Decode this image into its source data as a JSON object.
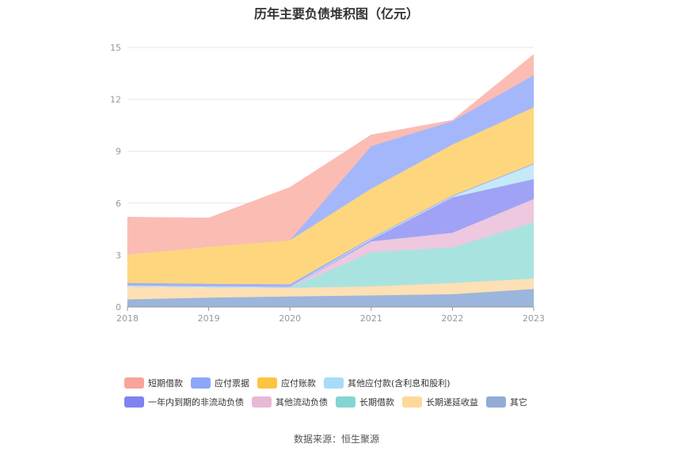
{
  "chart_data": {
    "type": "area",
    "title": "历年主要负债堆积图（亿元）",
    "x": [
      "2018",
      "2019",
      "2020",
      "2021",
      "2022",
      "2023"
    ],
    "ylim": [
      0,
      15
    ],
    "yticks": [
      "0",
      "3",
      "6",
      "9",
      "12",
      "15"
    ],
    "grid": true,
    "legend_position": "bottom",
    "series": [
      {
        "name": "其它",
        "color": "#9bb5dc",
        "values": [
          0.45,
          0.55,
          0.62,
          0.68,
          0.75,
          1.05
        ]
      },
      {
        "name": "长期递延收益",
        "color": "#fde0b4",
        "values": [
          0.75,
          0.6,
          0.5,
          0.52,
          0.65,
          0.6
        ]
      },
      {
        "name": "长期借款",
        "color": "#a9e3e0",
        "values": [
          0,
          0,
          0,
          1.97,
          2.05,
          3.25
        ]
      },
      {
        "name": "其他流动负债",
        "color": "#edc8df",
        "values": [
          0,
          0,
          0,
          0.63,
          0.85,
          1.35
        ]
      },
      {
        "name": "一年内到期的非流动负债",
        "color": "#a0a3f5",
        "values": [
          0,
          0,
          0,
          0.1,
          2.05,
          1.15
        ]
      },
      {
        "name": "其他应付款(含利息和股利)",
        "color": "#c6e9f8",
        "values": [
          0.05,
          0.05,
          0.05,
          0.05,
          0.05,
          0.85
        ]
      },
      {
        "name": "应付票据",
        "color": "#9fb0f8",
        "values": [
          0.15,
          0.15,
          0.15,
          0.05,
          0.05,
          0.05
        ]
      },
      {
        "name": "应付账款",
        "color": "#fed67e",
        "values": [
          1.65,
          2.15,
          2.55,
          2.85,
          2.95,
          3.25
        ]
      },
      {
        "name": "应付票据",
        "color": "#a4b7fb",
        "values": [
          0,
          0,
          0,
          2.45,
          1.35,
          1.85
        ]
      },
      {
        "name": "短期借款",
        "color": "#fbbcb3",
        "values": [
          2.15,
          1.65,
          3.05,
          0.65,
          0.05,
          1.2
        ]
      }
    ]
  },
  "legend": {
    "row1": [
      {
        "label": "短期借款",
        "color": "#f8a49a"
      },
      {
        "label": "应付票据",
        "color": "#8ba7f8"
      },
      {
        "label": "应付账款",
        "color": "#fcc440"
      },
      {
        "label": "其他应付款(含利息和股利)",
        "color": "#a6dcf8"
      }
    ],
    "row2": [
      {
        "label": "一年内到期的非流动负债",
        "color": "#7f82f2"
      },
      {
        "label": "其他流动负债",
        "color": "#e8b8d6"
      },
      {
        "label": "长期借款",
        "color": "#84d5d2"
      },
      {
        "label": "长期递延收益",
        "color": "#fdd89a"
      },
      {
        "label": "其它",
        "color": "#93acd6"
      }
    ]
  },
  "source": "数据来源：恒生聚源"
}
